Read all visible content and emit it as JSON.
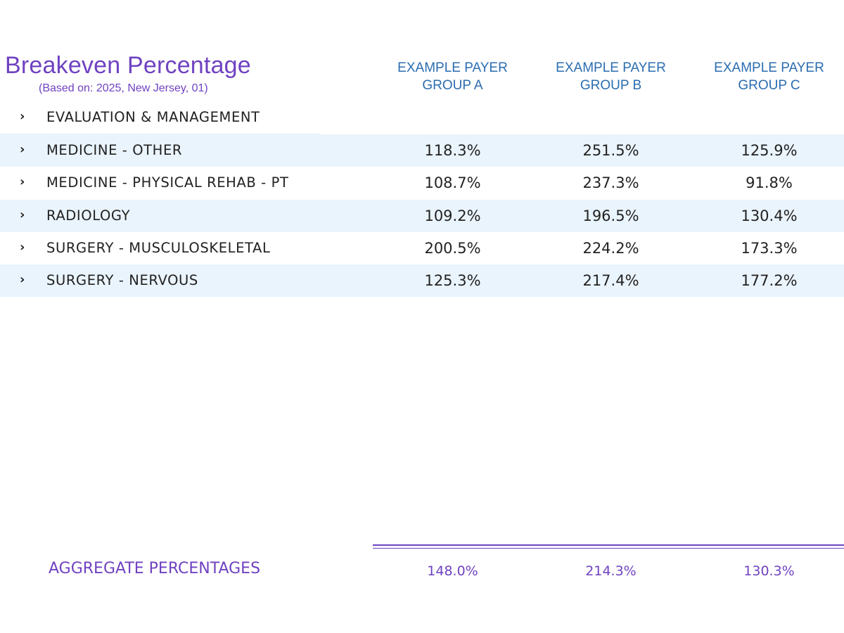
{
  "report": {
    "title": "Breakeven Percentage",
    "subtitle": "(Based on: 2025, New Jersey, 01)"
  },
  "columns": [
    {
      "line1": "EXAMPLE PAYER",
      "line2": "GROUP A"
    },
    {
      "line1": "EXAMPLE PAYER",
      "line2": "GROUP B"
    },
    {
      "line1": "EXAMPLE PAYER",
      "line2": "GROUP C"
    }
  ],
  "rows": [
    {
      "label": "EVALUATION & MANAGEMENT",
      "values": [
        "",
        "",
        ""
      ],
      "expand_icon": "chevron-right-icon"
    },
    {
      "label": "MEDICINE - OTHER",
      "values": [
        "118.3%",
        "251.5%",
        "125.9%"
      ],
      "expand_icon": "chevron-right-icon"
    },
    {
      "label": "MEDICINE - PHYSICAL REHAB - PT",
      "values": [
        "108.7%",
        "237.3%",
        "91.8%"
      ],
      "expand_icon": "chevron-right-icon"
    },
    {
      "label": "RADIOLOGY",
      "values": [
        "109.2%",
        "196.5%",
        "130.4%"
      ],
      "expand_icon": "chevron-right-icon"
    },
    {
      "label": "SURGERY - MUSCULOSKELETAL",
      "values": [
        "200.5%",
        "224.2%",
        "173.3%"
      ],
      "expand_icon": "chevron-right-icon"
    },
    {
      "label": "SURGERY - NERVOUS",
      "values": [
        "125.3%",
        "217.4%",
        "177.2%"
      ],
      "expand_icon": "chevron-right-icon"
    }
  ],
  "aggregate": {
    "label": "AGGREGATE PERCENTAGES",
    "values": [
      "148.0%",
      "214.3%",
      "130.3%"
    ]
  },
  "colors": {
    "accent": "#6f42c1",
    "header_blue": "#2b6cb0",
    "row_shade": "#eaf4fd"
  }
}
